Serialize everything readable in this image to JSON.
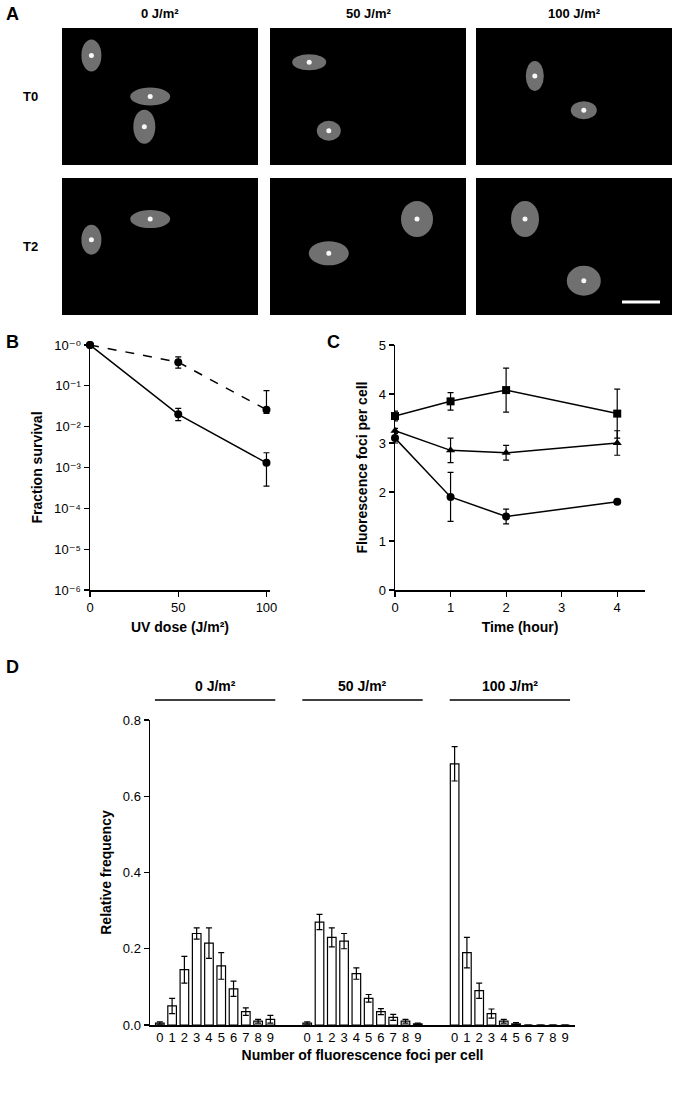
{
  "micrographs": {
    "panel": "A",
    "columns": [
      "0 J/m²",
      "50 J/m²",
      "100 J/m²"
    ],
    "rows": [
      "T0",
      "T2"
    ]
  },
  "chart_data": [
    {
      "panel": "B",
      "type": "line",
      "x": [
        0,
        50,
        100
      ],
      "x_label": "UV dose (J/m²)",
      "y_label": "Fraction survival",
      "xlim": [
        0,
        102
      ],
      "xticks": [
        0,
        50,
        100
      ],
      "ylim": [
        1e-06,
        1
      ],
      "yticks": [
        {
          "value": 1,
          "label": "10⁻⁰"
        },
        {
          "value": 0.1,
          "label": "10⁻¹"
        },
        {
          "value": 0.01,
          "label": "10⁻²"
        },
        {
          "value": 0.001,
          "label": "10⁻³"
        },
        {
          "value": 0.0001,
          "label": "10⁻⁴"
        },
        {
          "value": 1e-05,
          "label": "10⁻⁵"
        },
        {
          "value": 1e-06,
          "label": "10⁻⁶"
        }
      ],
      "log": "y",
      "grid": false,
      "series": [
        {
          "color": "#000000",
          "line_style": "solid",
          "marker": "circle",
          "values": [
            1,
            0.02,
            0.0013
          ],
          "errors_plus": [
            0,
            0.008,
            0.001
          ],
          "errors_minus": [
            0,
            0.006,
            0.00095
          ]
        },
        {
          "color": "#000000",
          "line_style": "dashed",
          "marker": "circle",
          "values": [
            1,
            0.38,
            0.026
          ],
          "errors_plus": [
            0,
            0.13,
            0.05
          ],
          "errors_minus": [
            0,
            0.11,
            0.005
          ]
        }
      ]
    },
    {
      "panel": "C",
      "type": "line",
      "x": [
        0,
        1,
        2,
        4
      ],
      "x_label": "Time (hour)",
      "y_label": "Fluorescence foci per cell",
      "xlim": [
        0,
        4.5
      ],
      "xticks": [
        0,
        1,
        2,
        3,
        4
      ],
      "ylim": [
        0,
        5
      ],
      "yticks": [
        0,
        1,
        2,
        3,
        4,
        5
      ],
      "grid": false,
      "series": [
        {
          "color": "#000000",
          "line_style": "solid",
          "marker": "square",
          "values": [
            3.55,
            3.85,
            4.08,
            3.6
          ],
          "errors": [
            0.1,
            0.18,
            0.45,
            0.5
          ]
        },
        {
          "color": "#000000",
          "line_style": "solid",
          "marker": "triangle",
          "values": [
            3.25,
            2.85,
            2.8,
            3.0
          ],
          "errors": [
            0.05,
            0.25,
            0.15,
            0.25
          ]
        },
        {
          "color": "#000000",
          "line_style": "solid",
          "marker": "circle",
          "values": [
            3.1,
            1.9,
            1.5,
            1.8
          ],
          "errors": [
            0.1,
            0.5,
            0.15,
            0.03
          ]
        }
      ]
    },
    {
      "panel": "D",
      "type": "bar",
      "x_label": "Number of fluorescence foci per cell",
      "y_label": "Relative frequency",
      "ylim": [
        0,
        0.8
      ],
      "yticks": [
        {
          "value": 0,
          "label": "0.0"
        },
        {
          "value": 0.2,
          "label": "0.2"
        },
        {
          "value": 0.4,
          "label": "0.4"
        },
        {
          "value": 0.6,
          "label": "0.6"
        },
        {
          "value": 0.8,
          "label": "0.8"
        }
      ],
      "color": "#ffffff",
      "grid": false,
      "groups": [
        {
          "name": "0 J/m²",
          "categories": [
            "0",
            "1",
            "2",
            "3",
            "4",
            "5",
            "6",
            "7",
            "8",
            "9"
          ],
          "values": [
            0.005,
            0.05,
            0.145,
            0.24,
            0.215,
            0.155,
            0.095,
            0.035,
            0.01,
            0.015
          ],
          "errors": [
            0.003,
            0.02,
            0.035,
            0.015,
            0.04,
            0.035,
            0.02,
            0.01,
            0.005,
            0.01
          ]
        },
        {
          "name": "50 J/m²",
          "categories": [
            "0",
            "1",
            "2",
            "3",
            "4",
            "5",
            "6",
            "7",
            "8",
            "9"
          ],
          "values": [
            0.005,
            0.27,
            0.23,
            0.22,
            0.135,
            0.07,
            0.035,
            0.02,
            0.01,
            0.003
          ],
          "errors": [
            0.003,
            0.02,
            0.025,
            0.02,
            0.015,
            0.01,
            0.008,
            0.008,
            0.005,
            0.002
          ]
        },
        {
          "name": "100 J/m²",
          "categories": [
            "0",
            "1",
            "2",
            "3",
            "4",
            "5",
            "6",
            "7",
            "8",
            "9"
          ],
          "values": [
            0.685,
            0.19,
            0.09,
            0.03,
            0.01,
            0.003,
            0,
            0,
            0,
            0
          ],
          "errors": [
            0.045,
            0.04,
            0.02,
            0.012,
            0.005,
            0.003,
            0,
            0,
            0,
            0
          ]
        }
      ]
    }
  ]
}
